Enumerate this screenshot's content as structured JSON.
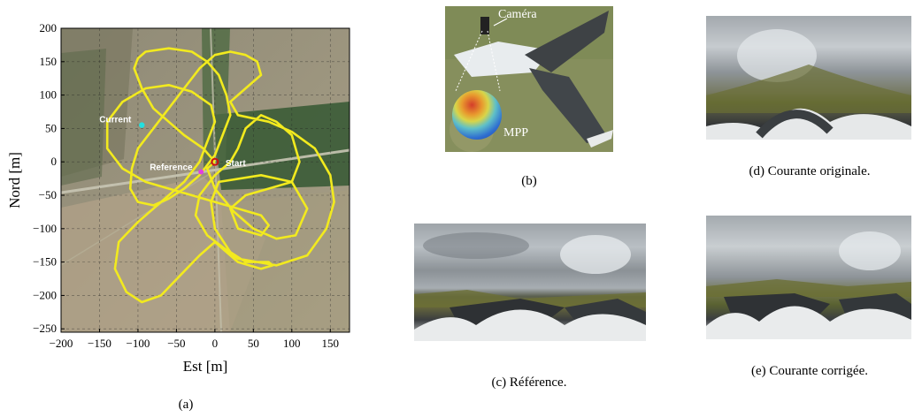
{
  "figure": {
    "panel_a": {
      "caption": "(a)",
      "markers": {
        "current_label": "Current",
        "reference_label": "Reference",
        "start_label": "Start"
      },
      "colors": {
        "trajectory": "#f2ea1e",
        "current_marker": "#22e0e0",
        "reference_marker": "#e040e0",
        "start_marker": "#cc1111"
      }
    },
    "panel_b": {
      "caption": "(b)",
      "camera_label": "Caméra",
      "mpp_label": "MPP"
    },
    "panel_c": {
      "caption": "(c) Référence."
    },
    "panel_d": {
      "caption": "(d) Courante originale."
    },
    "panel_e": {
      "caption": "(e) Courante corrigée."
    }
  },
  "chart_data": {
    "type": "line",
    "xlabel": "Est [m]",
    "ylabel": "Nord [m]",
    "xlim": [
      -200,
      175
    ],
    "ylim": [
      -255,
      200
    ],
    "xticks": [
      -200,
      -150,
      -100,
      -50,
      0,
      50,
      100,
      150
    ],
    "yticks": [
      -250,
      -200,
      -150,
      -100,
      -50,
      0,
      50,
      100,
      150,
      200
    ],
    "xtick_labels": [
      "−200",
      "−150",
      "−100",
      "−50",
      "0",
      "50",
      "100",
      "150"
    ],
    "ytick_labels": [
      "−250",
      "−200",
      "−150",
      "−100",
      "−50",
      "0",
      "50",
      "100",
      "150",
      "200"
    ],
    "grid": true,
    "points": {
      "current": [
        -95,
        55
      ],
      "reference": [
        -18,
        -15
      ],
      "start": [
        0,
        0
      ]
    },
    "trajectory": [
      [
        0,
        0
      ],
      [
        -15,
        20
      ],
      [
        -40,
        40
      ],
      [
        -60,
        60
      ],
      [
        -80,
        80
      ],
      [
        -95,
        110
      ],
      [
        -105,
        140
      ],
      [
        -100,
        155
      ],
      [
        -90,
        165
      ],
      [
        -60,
        170
      ],
      [
        -30,
        165
      ],
      [
        -10,
        150
      ],
      [
        5,
        130
      ],
      [
        15,
        100
      ],
      [
        20,
        70
      ],
      [
        10,
        40
      ],
      [
        0,
        10
      ],
      [
        -20,
        -20
      ],
      [
        -40,
        -40
      ],
      [
        -60,
        -55
      ],
      [
        -80,
        -65
      ],
      [
        -100,
        -60
      ],
      [
        -110,
        -40
      ],
      [
        -108,
        -10
      ],
      [
        -100,
        20
      ],
      [
        -80,
        50
      ],
      [
        -60,
        80
      ],
      [
        -40,
        110
      ],
      [
        -20,
        140
      ],
      [
        0,
        160
      ],
      [
        20,
        165
      ],
      [
        40,
        160
      ],
      [
        55,
        150
      ],
      [
        60,
        130
      ],
      [
        40,
        110
      ],
      [
        20,
        90
      ],
      [
        30,
        70
      ],
      [
        70,
        60
      ],
      [
        100,
        45
      ],
      [
        130,
        20
      ],
      [
        150,
        -20
      ],
      [
        155,
        -60
      ],
      [
        145,
        -100
      ],
      [
        120,
        -140
      ],
      [
        80,
        -155
      ],
      [
        30,
        -145
      ],
      [
        -10,
        -110
      ],
      [
        -25,
        -80
      ],
      [
        -20,
        -50
      ],
      [
        0,
        -20
      ],
      [
        20,
        0
      ],
      [
        30,
        20
      ],
      [
        40,
        50
      ],
      [
        60,
        70
      ],
      [
        80,
        60
      ],
      [
        100,
        40
      ],
      [
        110,
        0
      ],
      [
        100,
        -30
      ],
      [
        70,
        -40
      ],
      [
        40,
        -50
      ],
      [
        20,
        -70
      ],
      [
        30,
        -100
      ],
      [
        60,
        -110
      ],
      [
        70,
        -95
      ],
      [
        60,
        -80
      ],
      [
        30,
        -70
      ],
      [
        0,
        -60
      ],
      [
        -30,
        -50
      ],
      [
        -60,
        -40
      ],
      [
        -90,
        -30
      ],
      [
        -120,
        -10
      ],
      [
        -140,
        20
      ],
      [
        -140,
        60
      ],
      [
        -120,
        90
      ],
      [
        -90,
        110
      ],
      [
        -60,
        115
      ],
      [
        -30,
        105
      ],
      [
        -5,
        85
      ],
      [
        0,
        60
      ],
      [
        -10,
        30
      ],
      [
        -20,
        0
      ],
      [
        -40,
        -30
      ],
      [
        -70,
        -60
      ],
      [
        -100,
        -90
      ],
      [
        -125,
        -120
      ],
      [
        -130,
        -160
      ],
      [
        -115,
        -195
      ],
      [
        -95,
        -210
      ],
      [
        -70,
        -200
      ],
      [
        -45,
        -170
      ],
      [
        -20,
        -140
      ],
      [
        0,
        -120
      ],
      [
        30,
        -150
      ],
      [
        60,
        -160
      ],
      [
        75,
        -155
      ],
      [
        70,
        -150
      ],
      [
        40,
        -150
      ],
      [
        20,
        -135
      ],
      [
        0,
        -100
      ],
      [
        -5,
        -60
      ],
      [
        5,
        -30
      ],
      [
        60,
        -20
      ],
      [
        100,
        -30
      ],
      [
        120,
        -70
      ],
      [
        105,
        -110
      ],
      [
        80,
        -115
      ],
      [
        50,
        -100
      ],
      [
        25,
        -75
      ],
      [
        0,
        -40
      ],
      [
        -10,
        -10
      ],
      [
        0,
        0
      ]
    ]
  }
}
